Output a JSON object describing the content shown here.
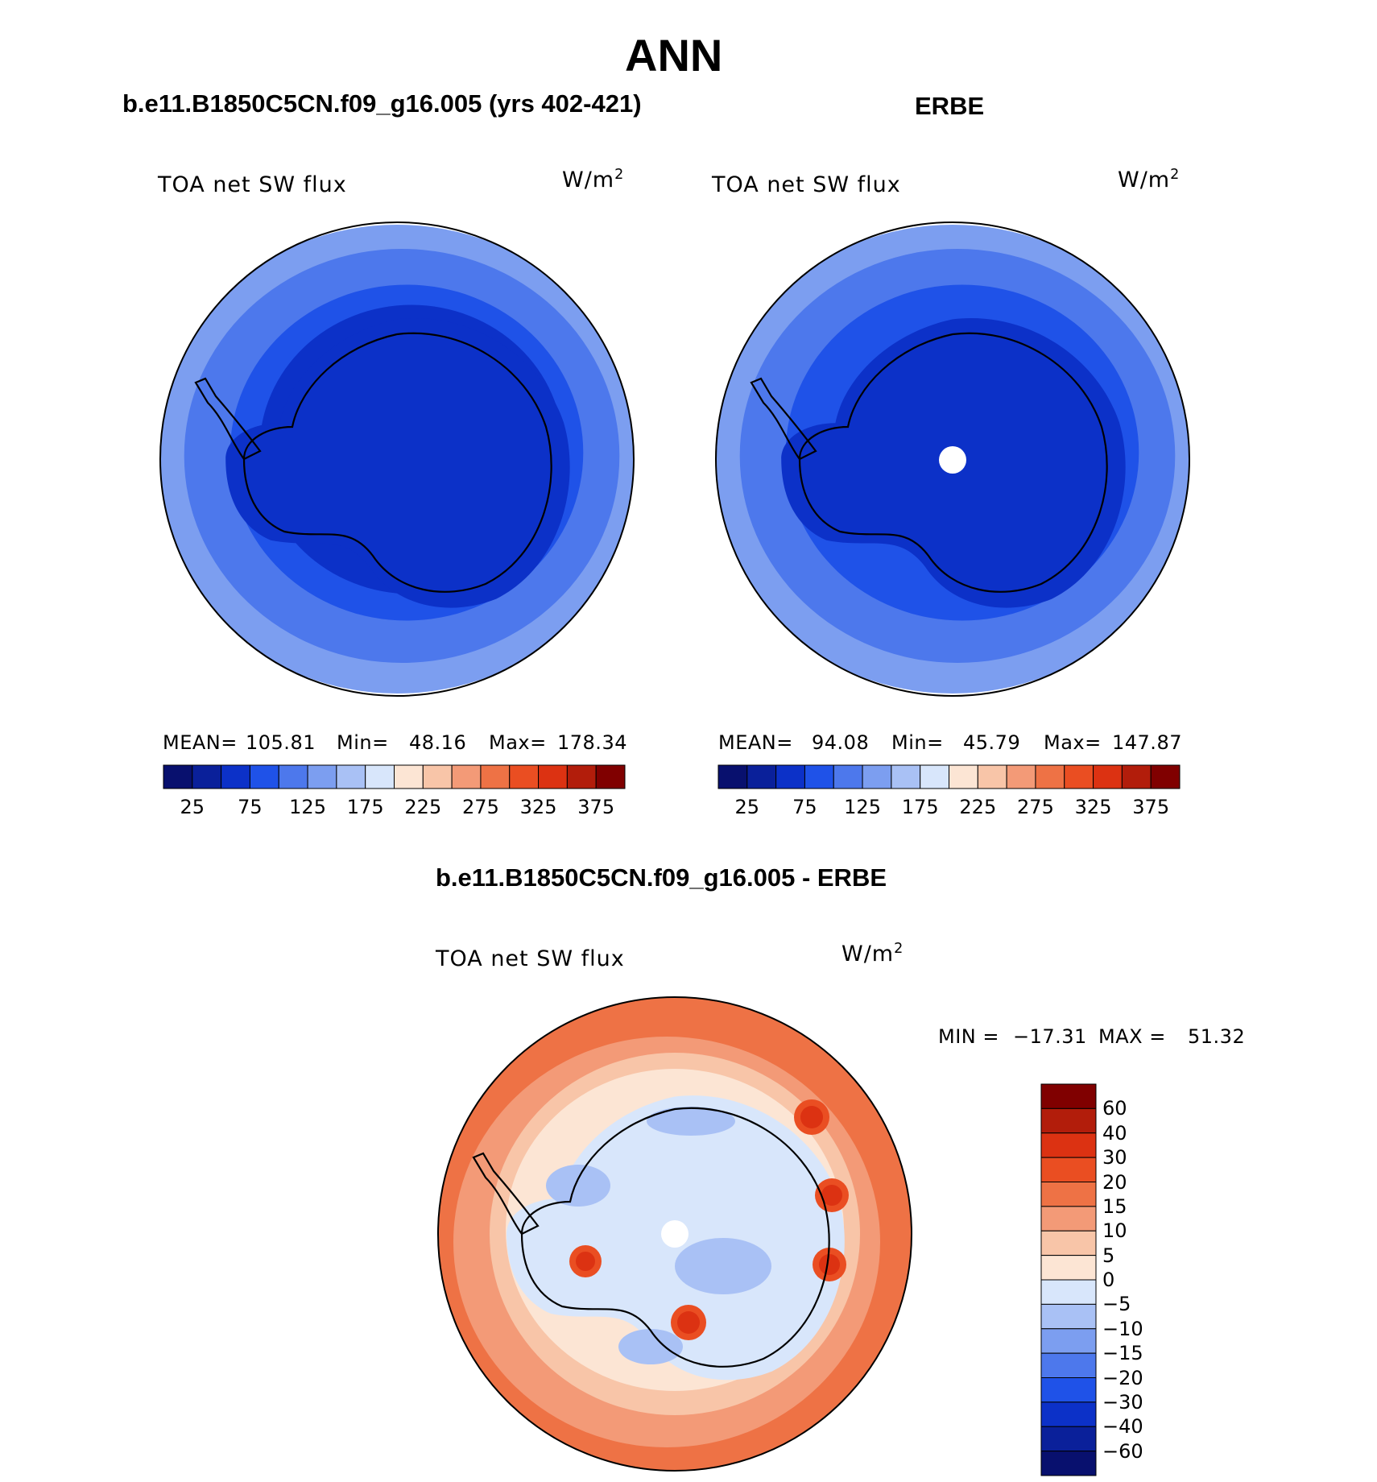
{
  "title": "ANN",
  "colors": {
    "abs_levels": [
      "#08106e",
      "#0a209a",
      "#0c31c8",
      "#1f52e8",
      "#4d78ec",
      "#7c9ef0",
      "#a9c1f5",
      "#d8e6fb",
      "#fce5d4",
      "#f8c5a8",
      "#f39a77",
      "#ee7245",
      "#ea4e22",
      "#dc3212",
      "#b21d0b",
      "#800000"
    ],
    "diff_levels": [
      "#08106e",
      "#0a209a",
      "#0c31c8",
      "#1f52e8",
      "#4d78ec",
      "#7c9ef0",
      "#a9c1f5",
      "#d8e6fb",
      "#fce5d4",
      "#f8c5a8",
      "#f39a77",
      "#ee7245",
      "#ea4e22",
      "#dc3212",
      "#b21d0b",
      "#800000"
    ],
    "coastline": "#000000",
    "pole_hole": "#ffffff"
  },
  "panels": [
    {
      "id": "model",
      "case_title": "b.e11.B1850C5CN.f09_g16.005 (yrs 402-421)",
      "variable": "TOA net SW flux",
      "units_base": "W/m",
      "units_exp": "2",
      "stats_labels": {
        "mean": "MEAN=",
        "min": "Min=",
        "max": "Max="
      },
      "stats": {
        "mean": "105.81",
        "min": "48.16",
        "max": "178.34"
      },
      "bands": [
        {
          "level": 5
        },
        {
          "level": 4
        },
        {
          "level": 3
        },
        {
          "level": 2
        }
      ],
      "interior_level": 2,
      "has_pole_hole": false
    },
    {
      "id": "obs",
      "case_title": "ERBE",
      "variable": "TOA net SW flux",
      "units_base": "W/m",
      "units_exp": "2",
      "stats_labels": {
        "mean": "MEAN=",
        "min": "Min=",
        "max": "Max="
      },
      "stats": {
        "mean": "94.08",
        "min": "45.79",
        "max": "147.87"
      },
      "bands": [
        {
          "level": 5
        },
        {
          "level": 4
        },
        {
          "level": 3
        }
      ],
      "interior_level": 2,
      "has_pole_hole": true
    }
  ],
  "colorbar": {
    "tick_labels": [
      "25",
      "75",
      "125",
      "175",
      "225",
      "275",
      "325",
      "375"
    ]
  },
  "diff": {
    "case_title": "b.e11.B1850C5CN.f09_g16.005 - ERBE",
    "variable": "TOA net SW flux",
    "units_base": "W/m",
    "units_exp": "2",
    "min_label": "MIN =",
    "min_value": "−17.31",
    "max_label": "MAX =",
    "max_value": "51.32",
    "colorbar_labels": [
      "60",
      "40",
      "30",
      "20",
      "15",
      "10",
      "5",
      "0",
      "−5",
      "−10",
      "−15",
      "−20",
      "−30",
      "−40",
      "−60"
    ]
  }
}
